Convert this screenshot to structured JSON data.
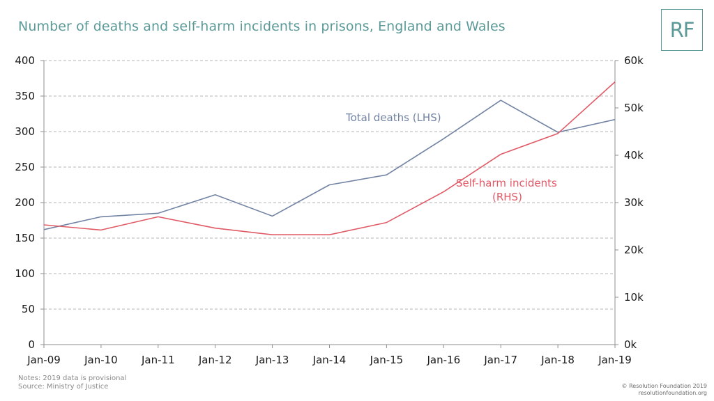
{
  "title": "Number of deaths and self-harm incidents in prisons, England and Wales",
  "logo": "RF",
  "notes": {
    "line1": "Notes: 2019 data is provisional",
    "line2": "Source: Ministry of Justice"
  },
  "copyright": {
    "line1": "© Resolution Foundation 2019",
    "line2": "resolutionfoundation.org"
  },
  "colors": {
    "deaths": "#7283a3",
    "selfharm": "#e05a66",
    "grid": "#b5b5b5",
    "axis": "#8f8f8f"
  },
  "chart_data": {
    "type": "line",
    "categories": [
      "Jan-09",
      "Jan-10",
      "Jan-11",
      "Jan-12",
      "Jan-13",
      "Jan-14",
      "Jan-15",
      "Jan-16",
      "Jan-17",
      "Jan-18",
      "Jan-19"
    ],
    "left_axis": {
      "min": 0,
      "max": 400,
      "ticks": [
        0,
        50,
        100,
        150,
        200,
        250,
        300,
        350,
        400
      ],
      "tick_labels": [
        "0",
        "50",
        "100",
        "150",
        "200",
        "250",
        "300",
        "350",
        "400"
      ]
    },
    "right_axis": {
      "min": 0,
      "max": 60000,
      "ticks": [
        0,
        10000,
        20000,
        30000,
        40000,
        50000,
        60000
      ],
      "tick_labels": [
        "0k",
        "10k",
        "20k",
        "30k",
        "40k",
        "50k",
        "60k"
      ]
    },
    "grid": true,
    "series": [
      {
        "name": "Total deaths (LHS)",
        "axis": "left",
        "color": "#7283a3",
        "values": [
          162,
          180,
          185,
          211,
          181,
          225,
          239,
          290,
          344,
          299,
          317
        ]
      },
      {
        "name_line1": "Self-harm incidents",
        "name_line2": "(RHS)",
        "axis": "right",
        "color": "#e05a66",
        "values": [
          25300,
          24200,
          27000,
          24600,
          23200,
          23200,
          25800,
          32300,
          40200,
          44600,
          55500
        ]
      }
    ],
    "annotations": [
      {
        "text": "Total deaths (LHS)",
        "series": 0
      },
      {
        "text": "Self-harm incidents",
        "series": 1
      },
      {
        "text": "(RHS)",
        "series": 1
      }
    ]
  }
}
